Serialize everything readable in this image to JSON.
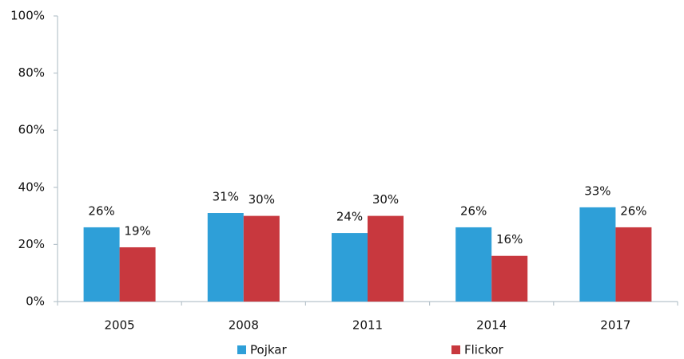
{
  "chart_data": {
    "type": "bar",
    "categories": [
      "2005",
      "2008",
      "2011",
      "2014",
      "2017"
    ],
    "series": [
      {
        "name": "Pojkar",
        "color": "#2e9fd8",
        "values": [
          26,
          31,
          24,
          26,
          33
        ],
        "value_labels": [
          "26%",
          "31%",
          "24%",
          "26%",
          "33%"
        ]
      },
      {
        "name": "Flickor",
        "color": "#c8383e",
        "values": [
          19,
          30,
          30,
          16,
          26
        ],
        "value_labels": [
          "19%",
          "30%",
          "30%",
          "16%",
          "26%"
        ]
      }
    ],
    "ylim": [
      0,
      100
    ],
    "yticks": [
      {
        "value": 0,
        "label": "0%"
      },
      {
        "value": 20,
        "label": "20%"
      },
      {
        "value": 40,
        "label": "40%"
      },
      {
        "value": 60,
        "label": "60%"
      },
      {
        "value": 80,
        "label": "80%"
      },
      {
        "value": 100,
        "label": "100%"
      }
    ],
    "grid": false,
    "legend": "bottom"
  }
}
